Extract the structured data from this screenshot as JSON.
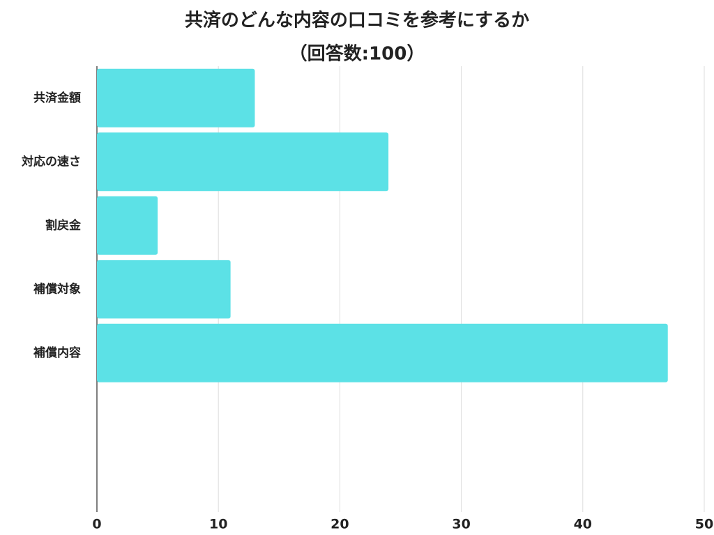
{
  "chart_data": {
    "type": "barh",
    "title": "共済のどんな内容の口コミを参考にするか",
    "subtitle": "（回答数:100）",
    "categories": [
      "共済金額",
      "対応の速さ",
      "割戻金",
      "補償対象",
      "補償内容"
    ],
    "values": [
      13,
      24,
      5,
      11,
      47
    ],
    "color": "#5ce1e6",
    "xlim": [
      0,
      50
    ],
    "xticks": [
      0,
      10,
      20,
      30,
      40,
      50
    ],
    "grid": true
  }
}
